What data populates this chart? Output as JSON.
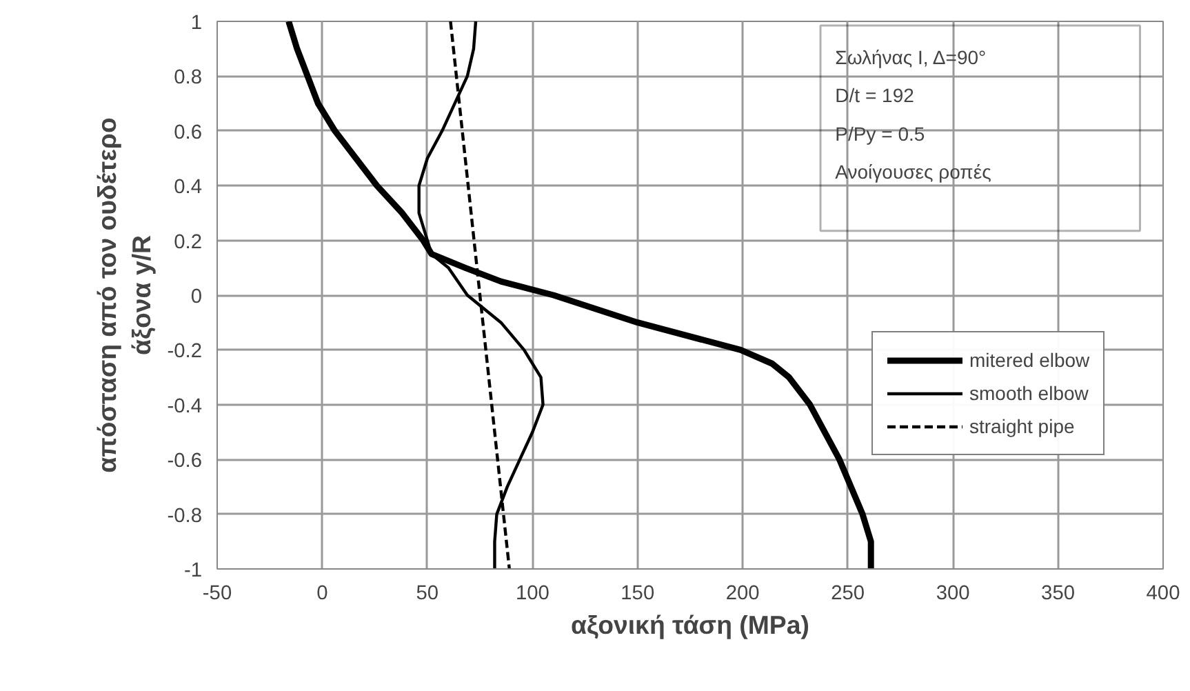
{
  "chart_data": {
    "type": "line",
    "xlabel": "αξονική τάση (MPa)",
    "ylabel": "απόσταση από τον ουδέτερο\nάξονα y/R",
    "xlim": [
      -50,
      400
    ],
    "ylim": [
      -1,
      1
    ],
    "xticks": [
      -50,
      0,
      50,
      100,
      150,
      200,
      250,
      300,
      350,
      400
    ],
    "yticks": [
      -1,
      -0.8,
      -0.6,
      -0.4,
      -0.2,
      0,
      0.2,
      0.4,
      0.6,
      0.8,
      1
    ],
    "grid": true,
    "legend": "right",
    "marker": "none",
    "annotations": [
      "Σωλήνας Ι, Δ=90°",
      "D/t = 192",
      "P/Py = 0.5",
      "Ανοίγουσες ροπές"
    ],
    "series": [
      {
        "name": "mitered elbow",
        "color": "#000000",
        "line_style": "solid",
        "x": [
          -16,
          -12,
          -7,
          -2,
          6,
          16,
          26,
          38,
          48,
          52,
          68,
          85,
          110,
          150,
          199,
          214,
          222,
          232,
          246,
          257,
          261,
          261
        ],
        "values": [
          1,
          0.9,
          0.8,
          0.7,
          0.6,
          0.5,
          0.4,
          0.3,
          0.2,
          0.15,
          0.1,
          0.05,
          0,
          -0.1,
          -0.2,
          -0.25,
          -0.3,
          -0.4,
          -0.6,
          -0.8,
          -0.9,
          -1
        ]
      },
      {
        "name": "smooth elbow",
        "color": "#000000",
        "line_style": "solid",
        "x": [
          73,
          72,
          69,
          63,
          57,
          50,
          46,
          46,
          50,
          52,
          60,
          69,
          85,
          96,
          104,
          105,
          100,
          94,
          88,
          83,
          82,
          82
        ],
        "values": [
          1,
          0.9,
          0.8,
          0.7,
          0.6,
          0.5,
          0.4,
          0.3,
          0.2,
          0.15,
          0.1,
          0,
          -0.1,
          -0.2,
          -0.3,
          -0.4,
          -0.5,
          -0.6,
          -0.7,
          -0.8,
          -0.9,
          -1
        ]
      },
      {
        "name": "straight pipe",
        "color": "#000000",
        "line_style": "dashed",
        "x": [
          61,
          89
        ],
        "values": [
          1,
          -1
        ]
      }
    ]
  }
}
